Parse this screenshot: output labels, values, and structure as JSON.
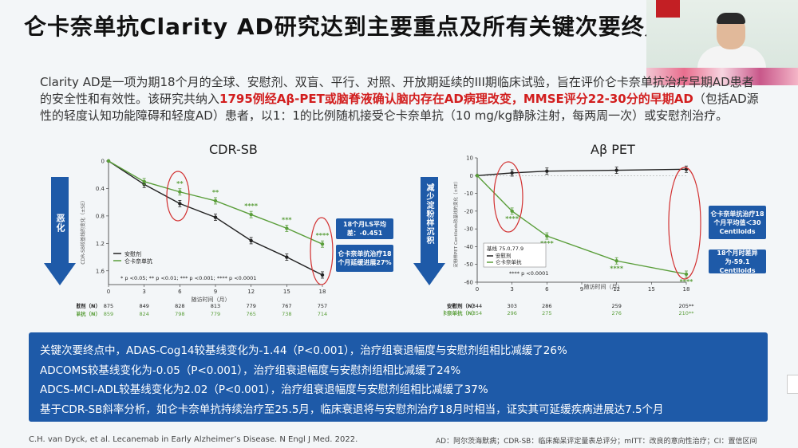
{
  "slide": {
    "title": "仑卡奈单抗Clarity AD研究达到主要重点及所有关键次要终点",
    "intro_part1": "Clarity AD是一项为期18个月的全球、安慰剂、双盲、平行、对照、开放期延续的III期临床试验，旨在评价仑卡奈单抗治疗早期AD患者的安全性和有效性。该研究共纳入",
    "intro_red1": "1795例经Aβ-PET或脑脊液确认脑内存在AD病理改变，MMSE评分22-30分的早期AD",
    "intro_part2": "（包括AD源性的轻度认知功能障碍和轻度AD）患者，以1：1的比例随机接受仑卡奈单抗（10 mg/kg静脉注射，每两周一次）或安慰剂治疗。"
  },
  "left_chart": {
    "arrow_label": "恶化",
    "y_axis_label": "CDR-SB较基线的变化（±SE）",
    "legend_placebo": "安慰剂",
    "legend_drug": "仑卡奈单抗",
    "pvalue_note": "* p <0.05; ** p <0.01; *** p <0.001; **** p <0.0001",
    "box1": "18个月LS平均差：-0.451",
    "box2": "仑卡奈单抗治疗18个月延缓进展27%",
    "n_label_placebo": "安慰剂（N）",
    "n_label_drug": "仑卡奈单抗（N）",
    "n_placebo": [
      "875",
      "849",
      "828",
      "813",
      "779",
      "767",
      "757"
    ],
    "n_drug": [
      "859",
      "824",
      "798",
      "779",
      "765",
      "738",
      "714"
    ]
  },
  "right_chart": {
    "arrow_label": "减少淀粉样沉积",
    "y_axis_label": "淀粉样PET Centiloids较基线的变化（±SE）",
    "baseline_label": "基线 75.0,77.9",
    "legend_placebo": "安慰剂",
    "legend_drug": "仑卡奈单抗",
    "pvalue_note": "**** p <0.0001",
    "box1": "仑卡奈单抗治疗18个月平均值＜30 Centiloids",
    "box2": "18个月时差异为-59.1 Centiloids",
    "n_label_placebo": "安慰剂（N）",
    "n_label_drug": "仑卡奈单抗（N）",
    "n_placebo": [
      "344",
      "303",
      "286",
      "259",
      "205**"
    ],
    "n_drug": [
      "354",
      "296",
      "275",
      "276",
      "210**"
    ]
  },
  "chart_data": [
    {
      "type": "line",
      "title": "CDR-SB",
      "xlabel": "随访时间（月）",
      "ylabel": "CDR-SB较基线的变化（±SE）",
      "x": [
        0,
        3,
        6,
        9,
        12,
        15,
        18
      ],
      "xlim": [
        0,
        18
      ],
      "ylim": [
        0,
        1.8
      ],
      "y_inverted": true,
      "yticks": [
        0,
        0.4,
        0.8,
        1.2,
        1.6
      ],
      "series": [
        {
          "name": "安慰剂",
          "values": [
            0,
            0.34,
            0.62,
            0.82,
            1.16,
            1.4,
            1.66
          ],
          "color": "#222222"
        },
        {
          "name": "仑卡奈单抗",
          "values": [
            0,
            0.3,
            0.45,
            0.58,
            0.78,
            0.98,
            1.21
          ],
          "color": "#5a9e3a"
        }
      ],
      "annotations": [
        {
          "x": 6,
          "label": "**"
        },
        {
          "x": 9,
          "label": "**"
        },
        {
          "x": 12,
          "label": "****"
        },
        {
          "x": 15,
          "label": "***"
        },
        {
          "x": 18,
          "label": "****"
        }
      ]
    },
    {
      "type": "line",
      "title": "Aβ PET",
      "xlabel": "随访时间（月）",
      "ylabel": "淀粉样PET Centiloids较基线的变化（±SE）",
      "x": [
        0,
        3,
        6,
        12,
        18
      ],
      "xlim": [
        0,
        18
      ],
      "ylim": [
        -60,
        10
      ],
      "yticks": [
        10,
        0,
        -10,
        -20,
        -30,
        -40,
        -50,
        -60
      ],
      "series": [
        {
          "name": "安慰剂",
          "values": [
            0,
            1.5,
            2.5,
            3.0,
            3.6
          ],
          "color": "#222222"
        },
        {
          "name": "仑卡奈单抗",
          "values": [
            0,
            -20,
            -34,
            -48,
            -55.5
          ],
          "color": "#5a9e3a"
        }
      ],
      "annotations": [
        {
          "x": 3,
          "label": "****"
        },
        {
          "x": 6,
          "label": "****"
        },
        {
          "x": 12,
          "label": "****"
        },
        {
          "x": 18,
          "label": "****"
        }
      ]
    }
  ],
  "bottom_panel": {
    "lines": [
      "关键次要终点中，ADAS-Cog14较基线变化为-1.44（P<0.001），治疗组衰退幅度与安慰剂组相比减缓了26%",
      "ADCOMS较基线变化为-0.05（P<0.001），治疗组衰退幅度与安慰剂组相比减缓了24%",
      "ADCS-MCI-ADL较基线变化为2.02（P<0.001），治疗组衰退幅度与安慰剂组相比减缓了37%",
      "基于CDR-SB斜率分析，如仑卡奈单抗持续治疗至25.5月，临床衰退将与安慰剂治疗18月时相当，证实其可延缓疾病进展达7.5个月"
    ]
  },
  "footer": {
    "citation": "C.H. van Dyck, et al. Lecanemab in Early Alzheimer’s Disease. N Engl J Med. 2022.",
    "abbreviations": "AD：阿尔茨海默病；CDR-SB：临床痴呆评定量表总评分；mITT：改良的意向性治疗；CI：置信区间"
  },
  "colors": {
    "accent_blue": "#1e5aa8",
    "drug_green": "#5a9e3a",
    "placebo_black": "#222222",
    "highlight_red": "#d21e1e"
  }
}
